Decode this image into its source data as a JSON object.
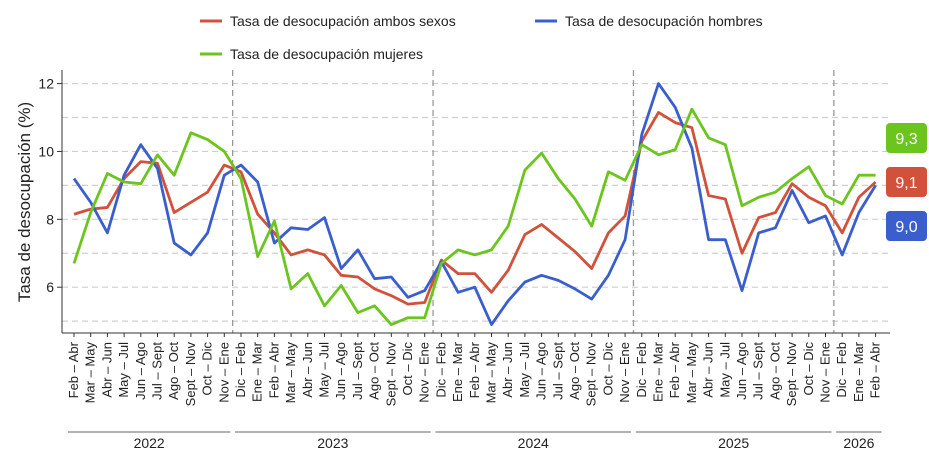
{
  "chart_data": {
    "type": "line",
    "y_label": "Tasa de desocupación (%)",
    "categories": [
      "Feb – Abr",
      "Mar – May",
      "Abr – Jun",
      "May – Jul",
      "Jun – Ago",
      "Jul – Sept",
      "Ago – Oct",
      "Sept – Nov",
      "Oct – Dic",
      "Nov – Ene",
      "Dic – Feb",
      "Ene – Mar",
      "Feb – Abr",
      "Mar – May",
      "Abr – Jun",
      "May – Jul",
      "Jun – Ago",
      "Jul – Sept",
      "Ago – Oct",
      "Sept – Nov",
      "Oct – Dic",
      "Nov – Ene",
      "Dic – Feb",
      "Ene – Mar",
      "Feb – Abr",
      "Mar – May",
      "Abr – Jun",
      "May – Jul",
      "Jun – Ago",
      "Jul – Sept",
      "Ago – Oct",
      "Sept – Nov",
      "Oct – Dic",
      "Nov – Ene",
      "Dic – Feb",
      "Ene – Mar",
      "Feb – Abr",
      "Mar – May",
      "Abr – Jun",
      "May – Jul",
      "Jun – Ago",
      "Jul – Sept",
      "Ago – Oct",
      "Sept – Nov",
      "Oct – Dic",
      "Nov – Ene",
      "Dic – Feb",
      "Ene – Mar",
      "Feb – Abr"
    ],
    "groups": [
      {
        "label": "2022",
        "count": 10
      },
      {
        "label": "2023",
        "count": 12
      },
      {
        "label": "2024",
        "count": 12
      },
      {
        "label": "2025",
        "count": 12
      },
      {
        "label": "2026",
        "count": 3
      }
    ],
    "series": [
      {
        "name": "Tasa de desocupación ambos sexos",
        "color": "#d2513a",
        "end_label": "9,1",
        "values": [
          8.15,
          8.3,
          8.35,
          9.2,
          9.7,
          9.65,
          8.2,
          8.5,
          8.8,
          9.6,
          9.4,
          8.15,
          7.6,
          6.95,
          7.1,
          6.95,
          6.35,
          6.3,
          5.95,
          5.75,
          5.5,
          5.55,
          6.8,
          6.4,
          6.4,
          5.85,
          6.5,
          7.55,
          7.85,
          7.45,
          7.05,
          6.55,
          7.6,
          8.1,
          10.3,
          11.15,
          10.85,
          10.7,
          8.7,
          8.6,
          7.0,
          8.05,
          8.2,
          9.05,
          8.65,
          8.4,
          7.6,
          8.65,
          9.1
        ]
      },
      {
        "name": "Tasa de desocupación hombres",
        "color": "#3a5fcd",
        "end_label": "9,0",
        "values": [
          9.2,
          8.5,
          7.6,
          9.3,
          10.2,
          9.5,
          7.3,
          6.95,
          7.6,
          9.3,
          9.6,
          9.1,
          7.3,
          7.75,
          7.7,
          8.05,
          6.55,
          7.1,
          6.25,
          6.3,
          5.7,
          5.9,
          6.75,
          5.85,
          6.0,
          4.9,
          5.6,
          6.15,
          6.35,
          6.2,
          5.95,
          5.65,
          6.35,
          7.4,
          10.5,
          12.0,
          11.3,
          10.1,
          7.4,
          7.4,
          5.9,
          7.6,
          7.75,
          8.85,
          7.9,
          8.1,
          6.95,
          8.2,
          9.0
        ]
      },
      {
        "name": "Tasa de desocupación mujeres",
        "color": "#6cc51e",
        "end_label": "9,3",
        "values": [
          6.7,
          8.2,
          9.35,
          9.1,
          9.05,
          9.9,
          9.3,
          10.55,
          10.35,
          10.0,
          9.2,
          6.9,
          7.95,
          5.95,
          6.4,
          5.45,
          6.05,
          5.25,
          5.45,
          4.9,
          5.1,
          5.1,
          6.7,
          7.1,
          6.95,
          7.1,
          7.8,
          9.45,
          9.95,
          9.2,
          8.6,
          7.8,
          9.4,
          9.15,
          10.2,
          9.9,
          10.05,
          11.25,
          10.4,
          10.2,
          8.4,
          8.65,
          8.8,
          9.2,
          9.55,
          8.7,
          8.45,
          9.3,
          9.3
        ]
      }
    ],
    "ylim": [
      4.65,
      12.4
    ],
    "yticks": [
      6,
      8,
      10,
      12
    ],
    "minor_yticks": [
      5,
      7,
      9,
      11
    ],
    "grid": true
  }
}
